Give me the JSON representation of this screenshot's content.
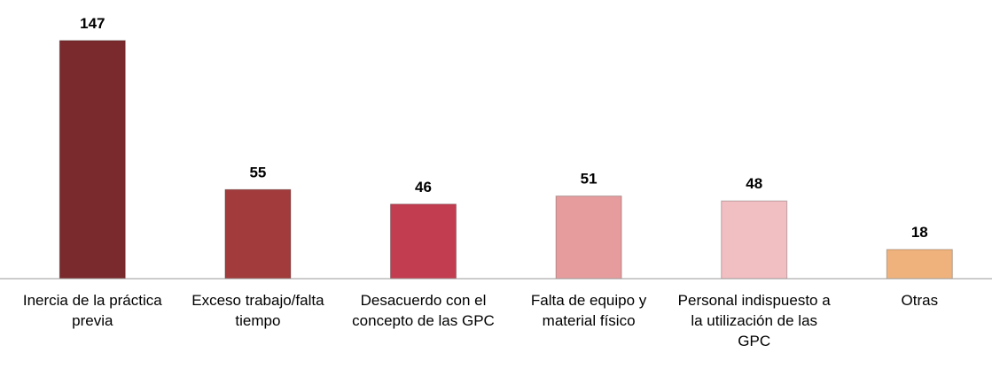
{
  "chart_data": {
    "type": "bar",
    "categories": [
      "Inercia de la práctica previa",
      "Exceso trabajo/falta tiempo",
      "Desacuerdo con el concepto de las GPC",
      "Falta de equipo y material físico",
      "Personal indispuesto a la utilización de las GPC",
      "Otras"
    ],
    "values": [
      147,
      55,
      46,
      51,
      48,
      18
    ],
    "colors": [
      "#7a2a2c",
      "#a23b3b",
      "#c23d50",
      "#e69c9d",
      "#f1bec2",
      "#efb27c"
    ],
    "ylim": [
      0,
      160
    ]
  }
}
